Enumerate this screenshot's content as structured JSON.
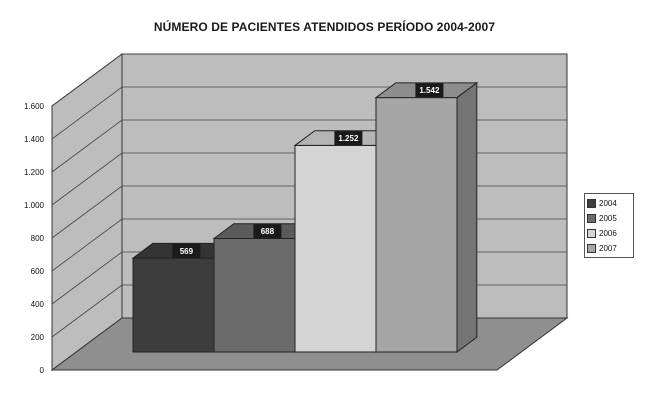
{
  "chart_data": {
    "type": "bar",
    "title": "NÚMERO DE PACIENTES ATENDIDOS PERÍODO 2004-2007",
    "xlabel": "",
    "ylabel": "",
    "categories": [
      ""
    ],
    "series": [
      {
        "name": "2004",
        "values": [
          569
        ],
        "label": "569",
        "color": "#3d3d3d"
      },
      {
        "name": "2005",
        "values": [
          688
        ],
        "label": "688",
        "color": "#6b6b6b"
      },
      {
        "name": "2006",
        "values": [
          1252
        ],
        "label": "1.252",
        "color": "#d4d4d4"
      },
      {
        "name": "2007",
        "values": [
          1542
        ],
        "label": "1.542",
        "color": "#a6a6a6"
      }
    ],
    "ylim": [
      0,
      1600
    ],
    "yticks": [
      0,
      200,
      400,
      600,
      800,
      1000,
      1200,
      1400,
      1600
    ],
    "ytick_labels": [
      "0",
      "200",
      "400",
      "600",
      "800",
      "1.000",
      "1.200",
      "1.400",
      "1.600"
    ],
    "grid": true,
    "legend_position": "right",
    "style": "3d-bar",
    "wall_color": "#bdbdbd",
    "floor_color": "#8f8f8f"
  }
}
